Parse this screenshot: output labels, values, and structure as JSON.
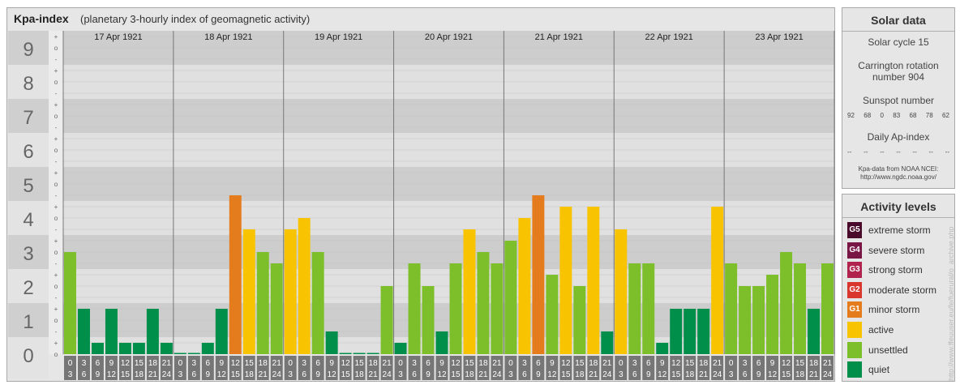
{
  "header": {
    "title": "Kpa-index",
    "subtitle": "(planetary 3-hourly index of geomagnetic activity)"
  },
  "chart_data": {
    "type": "bar",
    "y_range": [
      0,
      9
    ],
    "y_ticks": [
      "0",
      "1",
      "2",
      "3",
      "4",
      "5",
      "6",
      "7",
      "8",
      "9"
    ],
    "minor_ticks": [
      "o",
      "+",
      "-"
    ],
    "days": [
      "17 Apr 1921",
      "18 Apr 1921",
      "19 Apr 1921",
      "20 Apr 1921",
      "21 Apr 1921",
      "22 Apr 1921",
      "23 Apr 1921"
    ],
    "interval_top": [
      "0",
      "3",
      "6",
      "9",
      "12",
      "15",
      "18",
      "21"
    ],
    "interval_bottom": [
      "3",
      "6",
      "9",
      "12",
      "15",
      "18",
      "21",
      "24"
    ],
    "values": [
      [
        3.0,
        1.333,
        0.333,
        1.333,
        0.333,
        0.333,
        1.333,
        0.333
      ],
      [
        0,
        0,
        0.333,
        1.333,
        4.667,
        3.667,
        3.0,
        2.667
      ],
      [
        3.667,
        4.0,
        3.0,
        0.667,
        0,
        0,
        0,
        2.0
      ],
      [
        0.333,
        2.667,
        2.0,
        0.667,
        2.667,
        3.667,
        3.0,
        2.667
      ],
      [
        3.333,
        4.0,
        4.667,
        2.333,
        4.333,
        2.0,
        4.333,
        0.667
      ],
      [
        3.667,
        2.667,
        2.667,
        0.333,
        1.333,
        1.333,
        1.333,
        4.333
      ],
      [
        2.667,
        2.0,
        2.0,
        2.333,
        3.0,
        2.667,
        1.333,
        2.667
      ]
    ],
    "colors": {
      "quiet": "#008f4a",
      "unsettled": "#7cbf2a",
      "active": "#f8c300",
      "minor_storm": "#e47c1e",
      "moderate_storm": "#d9362e",
      "strong_storm": "#b0234c",
      "severe_storm": "#7a1646",
      "extreme_storm": "#4a0a2c"
    }
  },
  "solar": {
    "heading": "Solar data",
    "cycle": "Solar cycle 15",
    "carrington_1": "Carrington rotation",
    "carrington_2": "number 904",
    "sunspot_label": "Sunspot number",
    "sunspot_values": [
      "92",
      "68",
      "0",
      "83",
      "68",
      "78",
      "62"
    ],
    "ap_label": "Daily Ap-index",
    "ap_values": [
      "--",
      "--",
      "--",
      "--",
      "--",
      "--",
      "--"
    ],
    "credit_1": "Kpa-data from NOAA NCEI:",
    "credit_2": "http://www.ngdc.noaa.gov/"
  },
  "legend": {
    "heading": "Activity levels",
    "items": [
      {
        "code": "G5",
        "label": "extreme storm",
        "color": "#4a0a2c"
      },
      {
        "code": "G4",
        "label": "severe storm",
        "color": "#7a1646"
      },
      {
        "code": "G3",
        "label": "strong storm",
        "color": "#b0234c"
      },
      {
        "code": "G2",
        "label": "moderate storm",
        "color": "#d9362e"
      },
      {
        "code": "G1",
        "label": "minor storm",
        "color": "#e47c1e"
      },
      {
        "code": "",
        "label": "active",
        "color": "#f8c300"
      },
      {
        "code": "",
        "label": "unsettled",
        "color": "#7cbf2a"
      },
      {
        "code": "",
        "label": "quiet",
        "color": "#008f4a"
      }
    ]
  },
  "watermark": "http://www.ffeuuser.eu/fe/fuerural/o_archive.php"
}
